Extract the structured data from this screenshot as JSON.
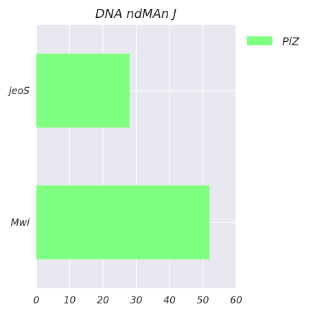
{
  "chart_data": {
    "type": "bar",
    "orientation": "horizontal",
    "title": "DNA ndMAn J",
    "xlabel": "",
    "ylabel": "",
    "categories": [
      "jeoS",
      "Mwi"
    ],
    "series": [
      {
        "name": "PiZ",
        "values": [
          28,
          52
        ]
      }
    ],
    "xlim": [
      0,
      60
    ],
    "xticks": [
      "0",
      "10",
      "20",
      "30",
      "40",
      "50",
      "60"
    ],
    "grid": true,
    "legend_position": "top-right-outside",
    "colors": {
      "bar": "#7fff7f",
      "plot_background": "#e8e8f1",
      "grid": "#ffffff"
    }
  }
}
